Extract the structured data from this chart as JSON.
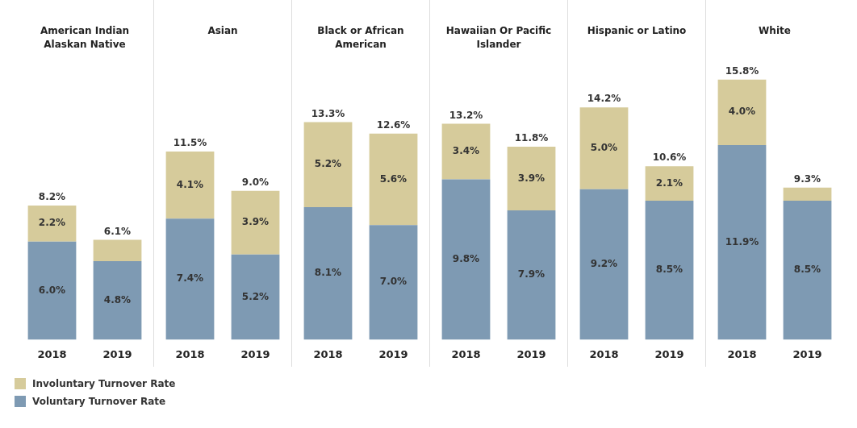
{
  "chart_data": [
    {
      "type": "bar",
      "title": "American Indian Alaskan Native",
      "categories": [
        "2018",
        "2019"
      ],
      "stacked": true,
      "legend": "bottom",
      "totals": [
        "8.2%",
        "6.1%"
      ],
      "series": [
        {
          "name": "Voluntary Turnover Rate",
          "color": "#7e9ab3",
          "values": [
            6.0,
            4.8
          ],
          "value_labels": [
            "6.0%",
            "4.8%"
          ]
        },
        {
          "name": "Involuntary Turnover Rate",
          "color": "#d6cb9b",
          "values": [
            2.2,
            1.3
          ],
          "value_labels": [
            "2.2%",
            null
          ]
        }
      ]
    },
    {
      "type": "bar",
      "title": "Asian",
      "categories": [
        "2018",
        "2019"
      ],
      "stacked": true,
      "totals": [
        "11.5%",
        "9.0%"
      ],
      "series": [
        {
          "color": "#7e9ab3",
          "values": [
            7.4,
            5.2
          ],
          "value_labels": [
            "7.4%",
            "5.2%"
          ]
        },
        {
          "color": "#d6cb9b",
          "values": [
            4.1,
            3.9
          ],
          "value_labels": [
            "4.1%",
            "3.9%"
          ]
        }
      ]
    },
    {
      "type": "bar",
      "title": "Black or African American",
      "categories": [
        "2018",
        "2019"
      ],
      "stacked": true,
      "totals": [
        "13.3%",
        "12.6%"
      ],
      "series": [
        {
          "color": "#7e9ab3",
          "values": [
            8.1,
            7.0
          ],
          "value_labels": [
            "8.1%",
            "7.0%"
          ]
        },
        {
          "color": "#d6cb9b",
          "values": [
            5.2,
            5.6
          ],
          "value_labels": [
            "5.2%",
            "5.6%"
          ]
        }
      ]
    },
    {
      "type": "bar",
      "title": "Hawaiian Or Pacific Islander",
      "categories": [
        "2018",
        "2019"
      ],
      "stacked": true,
      "totals": [
        "13.2%",
        "11.8%"
      ],
      "series": [
        {
          "color": "#7e9ab3",
          "values": [
            9.8,
            7.9
          ],
          "value_labels": [
            "9.8%",
            "7.9%"
          ]
        },
        {
          "color": "#d6cb9b",
          "values": [
            3.4,
            3.9
          ],
          "value_labels": [
            "3.4%",
            "3.9%"
          ]
        }
      ]
    },
    {
      "type": "bar",
      "title": "Hispanic or Latino",
      "categories": [
        "2018",
        "2019"
      ],
      "stacked": true,
      "totals": [
        "14.2%",
        "10.6%"
      ],
      "series": [
        {
          "color": "#7e9ab3",
          "values": [
            9.2,
            8.5
          ],
          "value_labels": [
            "9.2%",
            "8.5%"
          ]
        },
        {
          "color": "#d6cb9b",
          "values": [
            5.0,
            2.1
          ],
          "value_labels": [
            "5.0%",
            "2.1%"
          ]
        }
      ]
    },
    {
      "type": "bar",
      "title": "White",
      "categories": [
        "2018",
        "2019"
      ],
      "stacked": true,
      "totals": [
        "15.8%",
        "9.3%"
      ],
      "series": [
        {
          "color": "#7e9ab3",
          "values": [
            11.9,
            8.5
          ],
          "value_labels": [
            "11.9%",
            "8.5%"
          ]
        },
        {
          "color": "#d6cb9b",
          "values": [
            4.0,
            0.8
          ],
          "value_labels": [
            "4.0%",
            null
          ]
        }
      ]
    }
  ]
}
